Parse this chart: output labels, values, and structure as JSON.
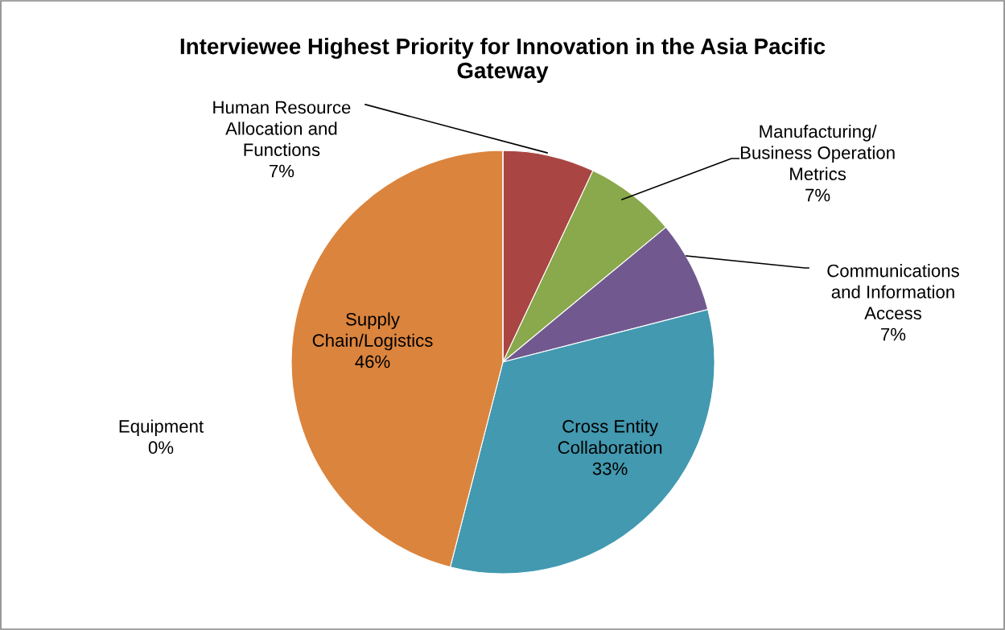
{
  "chart_data": {
    "type": "pie",
    "title": "Interviewee Highest Priority for Innovation in the Asia Pacific\nGateway",
    "categories": [
      "Human Resource\nAllocation and\nFunctions",
      "Manufacturing/\nBusiness Operation\nMetrics",
      "Communications\nand Information\nAccess",
      "Cross Entity\nCollaboration",
      "Supply\nChain/Logistics",
      "Equipment"
    ],
    "values": [
      7,
      7,
      7,
      33,
      46,
      0
    ],
    "value_labels": [
      "7%",
      "7%",
      "7%",
      "33%",
      "46%",
      "0%"
    ],
    "colors": [
      "#a94643",
      "#8aa84c",
      "#71598f",
      "#4299b0",
      "#db843d",
      "#93a9cf"
    ],
    "legend": false
  }
}
